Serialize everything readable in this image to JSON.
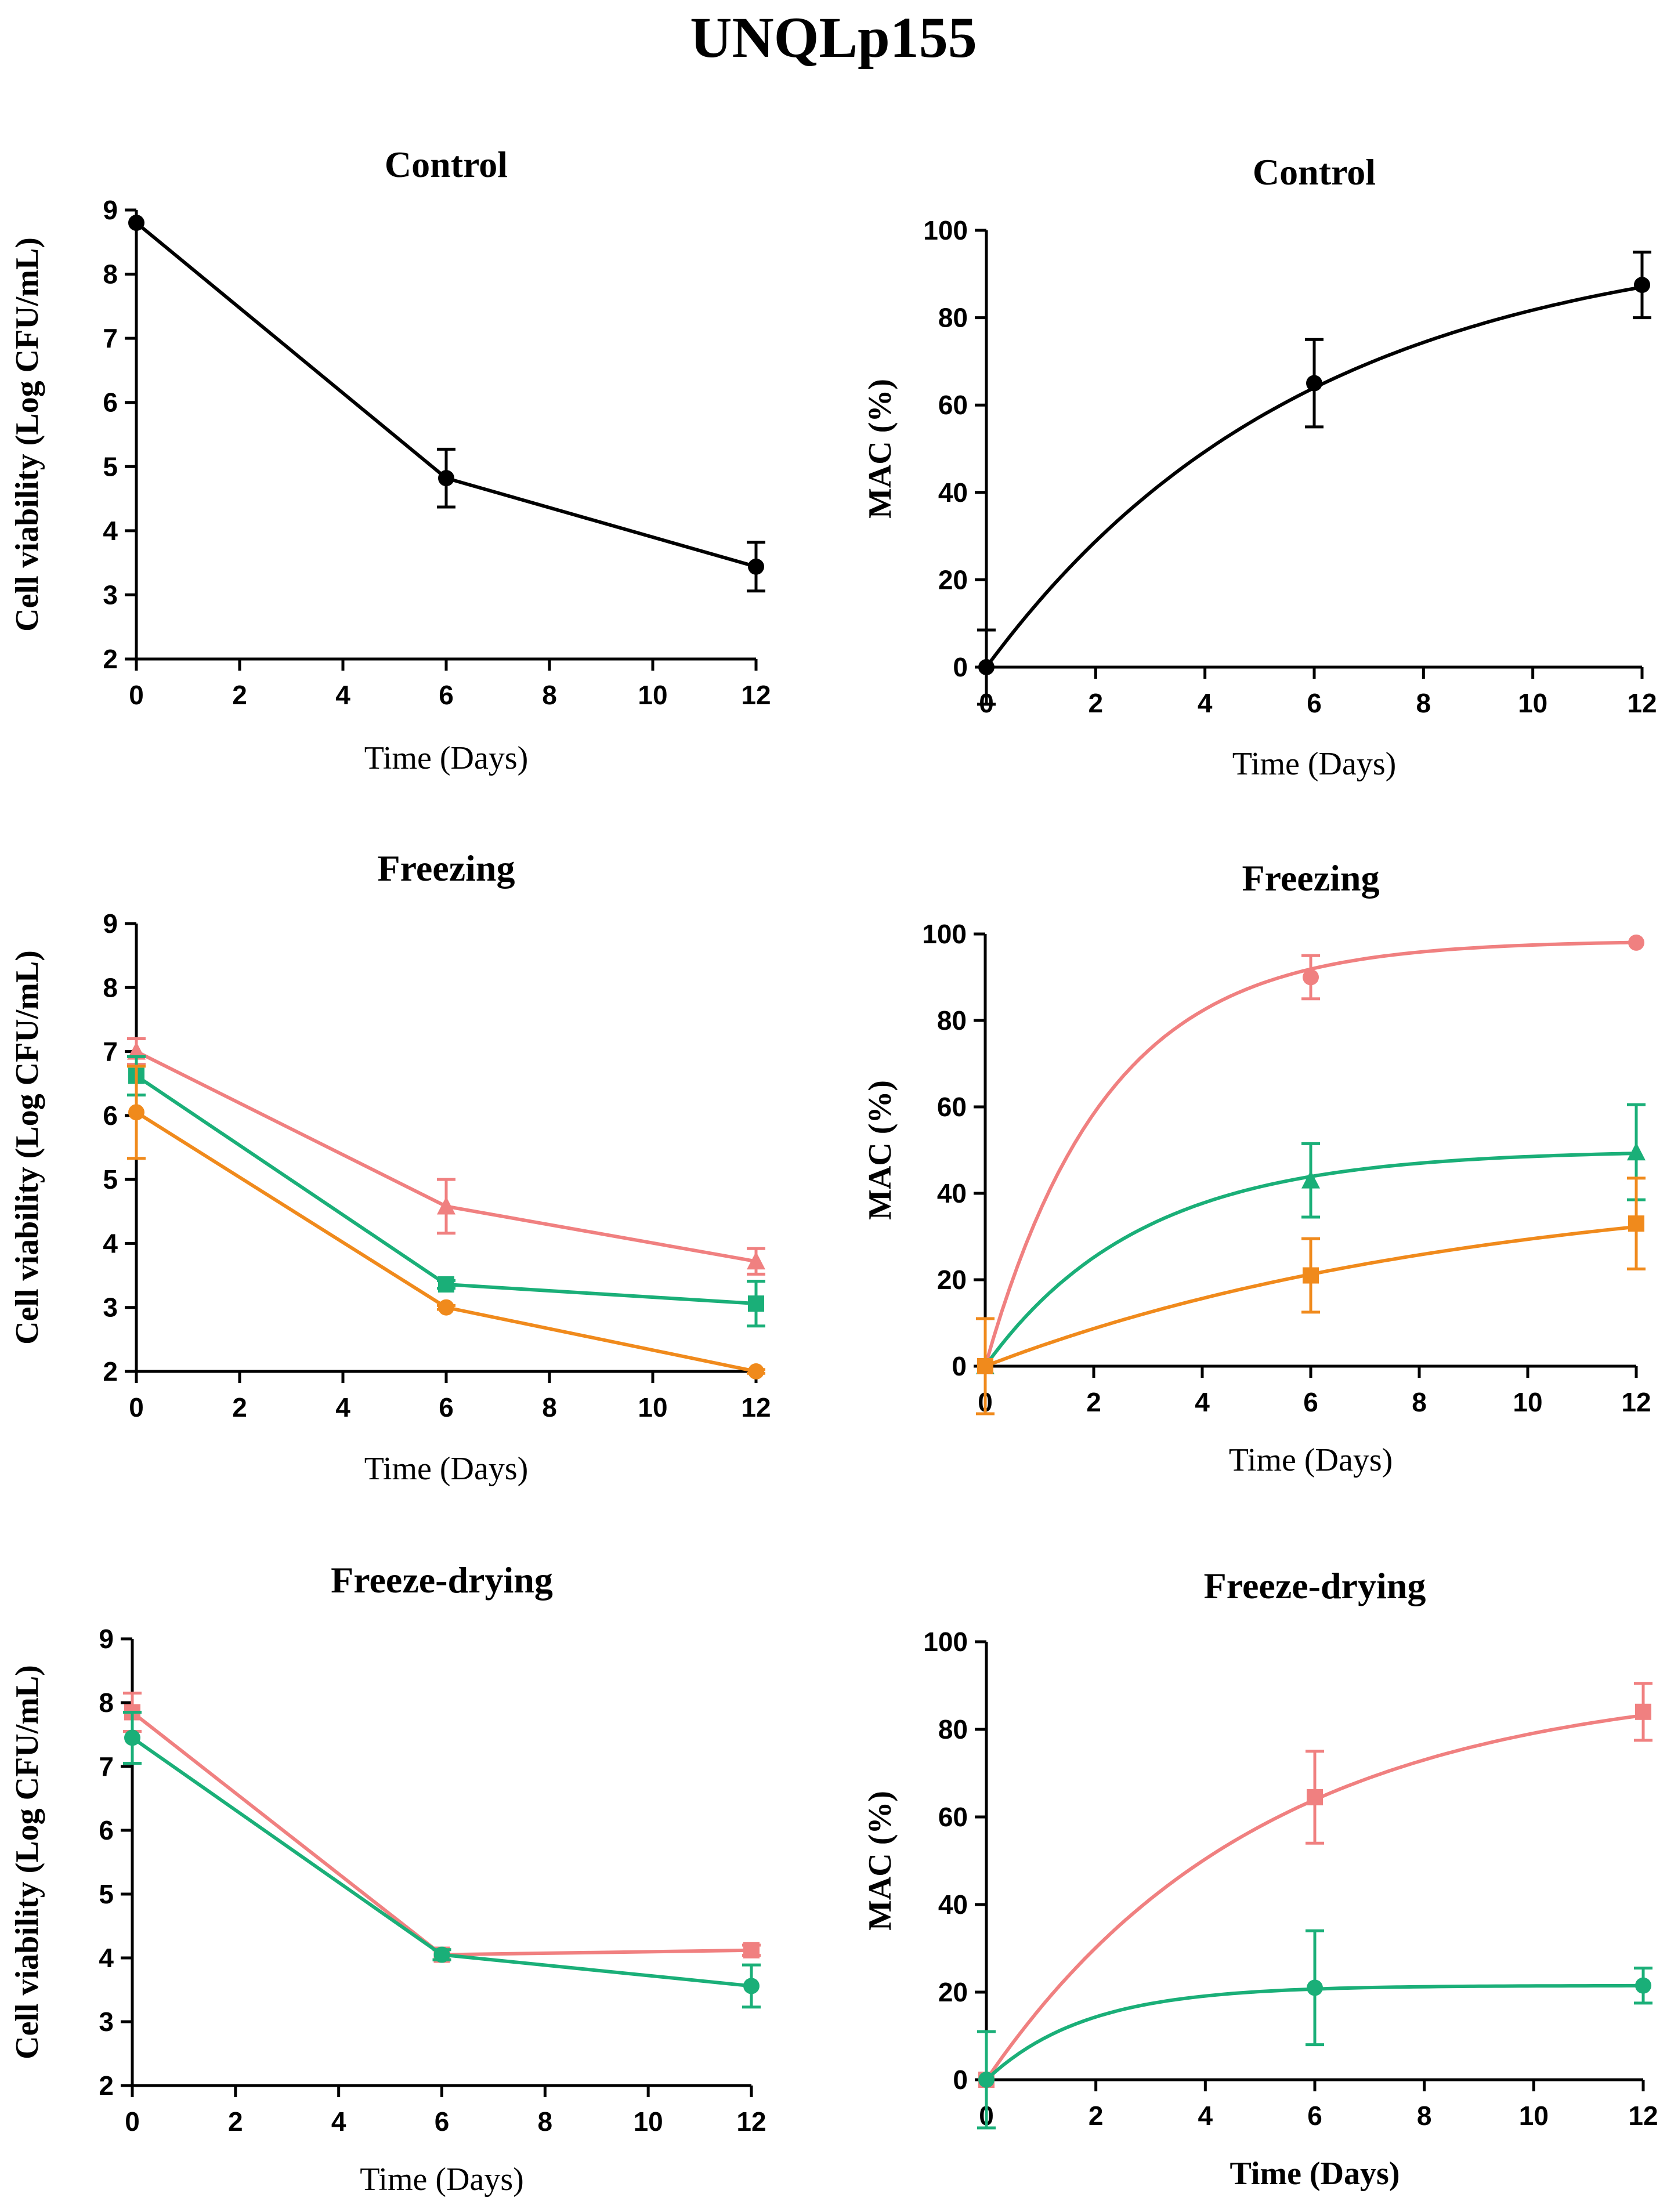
{
  "figure_title": "UNQLp155",
  "colors": {
    "black": "#000000",
    "pink": "#f08080",
    "green": "#1aaf78",
    "orange": "#f08a1c"
  },
  "chart_data": [
    {
      "id": "control-viability",
      "type": "line",
      "title": "Control",
      "xlabel": "Time (Days)",
      "ylabel": "Cell viability (Log CFU/mL)",
      "xlim": [
        0,
        12
      ],
      "ylim": [
        2,
        9
      ],
      "xticks": [
        "0",
        "2",
        "4",
        "6",
        "8",
        "10",
        "12"
      ],
      "yticks": [
        "2",
        "3",
        "4",
        "5",
        "6",
        "7",
        "8",
        "9"
      ],
      "series": [
        {
          "name": "control",
          "color": "black",
          "marker": "circle",
          "x": [
            0,
            6,
            12
          ],
          "y": [
            8.8,
            4.82,
            3.44
          ],
          "err": [
            0,
            0.45,
            0.38
          ]
        }
      ]
    },
    {
      "id": "control-mac",
      "type": "line",
      "title": "Control",
      "xlabel": "Time (Days)",
      "ylabel": "MAC (%)",
      "xlim": [
        0,
        12
      ],
      "ylim": [
        0,
        100
      ],
      "xticks": [
        "0",
        "2",
        "4",
        "6",
        "8",
        "10",
        "12"
      ],
      "yticks": [
        "0",
        "20",
        "40",
        "60",
        "80",
        "100"
      ],
      "series": [
        {
          "name": "control",
          "color": "black",
          "marker": "circle",
          "x": [
            0,
            6,
            12
          ],
          "y": [
            0,
            65,
            87.5
          ],
          "err": [
            8.5,
            10,
            7.5
          ],
          "fit": {
            "plateau": 100,
            "k": 0.17
          }
        }
      ]
    },
    {
      "id": "freezing-viability",
      "type": "line",
      "title": "Freezing",
      "xlabel": "Time (Days)",
      "ylabel": "Cell viability (Log CFU/mL)",
      "xlim": [
        0,
        12
      ],
      "ylim": [
        2,
        9
      ],
      "xticks": [
        "0",
        "2",
        "4",
        "6",
        "8",
        "10",
        "12"
      ],
      "yticks": [
        "2",
        "3",
        "4",
        "5",
        "6",
        "7",
        "8",
        "9"
      ],
      "series": [
        {
          "name": "pink",
          "color": "pink",
          "marker": "triangle",
          "x": [
            0,
            6,
            12
          ],
          "y": [
            7.0,
            4.58,
            3.72
          ],
          "err": [
            0.2,
            0.42,
            0.2
          ]
        },
        {
          "name": "green",
          "color": "green",
          "marker": "square",
          "x": [
            0,
            6,
            12
          ],
          "y": [
            6.62,
            3.36,
            3.06
          ],
          "err": [
            0.3,
            0.06,
            0.35
          ]
        },
        {
          "name": "orange",
          "color": "orange",
          "marker": "circle",
          "x": [
            0,
            6,
            12
          ],
          "y": [
            6.05,
            3.0,
            2.0
          ],
          "err": [
            0.72,
            0.03,
            0.03
          ]
        }
      ]
    },
    {
      "id": "freezing-mac",
      "type": "line",
      "title": "Freezing",
      "xlabel": "Time (Days)",
      "ylabel": "MAC (%)",
      "xlim": [
        0,
        12
      ],
      "ylim": [
        0,
        100
      ],
      "xticks": [
        "0",
        "2",
        "4",
        "6",
        "8",
        "10",
        "12"
      ],
      "yticks": [
        "0",
        "20",
        "40",
        "60",
        "80",
        "100"
      ],
      "series": [
        {
          "name": "pink",
          "color": "pink",
          "marker": "circle",
          "x": [
            0,
            6,
            12
          ],
          "y": [
            0,
            90,
            98
          ],
          "err": [
            0,
            5,
            0
          ],
          "fit": {
            "plateau": 98.5,
            "k": 0.45
          }
        },
        {
          "name": "green",
          "color": "green",
          "marker": "triangle",
          "x": [
            0,
            6,
            12
          ],
          "y": [
            0,
            43,
            49.5
          ],
          "err": [
            0,
            8.5,
            11
          ],
          "fit": {
            "plateau": 50,
            "k": 0.35
          }
        },
        {
          "name": "orange",
          "color": "orange",
          "marker": "square",
          "x": [
            0,
            6,
            12
          ],
          "y": [
            0,
            21,
            33
          ],
          "err": [
            11,
            8.5,
            10.5
          ],
          "fit": {
            "plateau": 44,
            "k": 0.11
          }
        }
      ]
    },
    {
      "id": "freeze-drying-viability",
      "type": "line",
      "title": "Freeze-drying",
      "xlabel": "Time (Days)",
      "ylabel": "Cell viability (Log CFU/mL)",
      "xlim": [
        0,
        12
      ],
      "ylim": [
        2,
        9
      ],
      "xticks": [
        "0",
        "2",
        "4",
        "6",
        "8",
        "10",
        "12"
      ],
      "yticks": [
        "2",
        "3",
        "4",
        "5",
        "6",
        "7",
        "8",
        "9"
      ],
      "series": [
        {
          "name": "pink",
          "color": "pink",
          "marker": "square",
          "x": [
            0,
            6,
            12
          ],
          "y": [
            7.85,
            4.05,
            4.12
          ],
          "err": [
            0.3,
            0.08,
            0.08
          ]
        },
        {
          "name": "green",
          "color": "green",
          "marker": "circle",
          "x": [
            0,
            6,
            12
          ],
          "y": [
            7.45,
            4.05,
            3.56
          ],
          "err": [
            0.4,
            0.08,
            0.33
          ]
        }
      ]
    },
    {
      "id": "freeze-drying-mac",
      "type": "line",
      "title": "Freeze-drying",
      "xlabel": "Time (Days)",
      "ylabel": "MAC (%)",
      "xlim": [
        0,
        12
      ],
      "ylim": [
        0,
        100
      ],
      "xticks": [
        "0",
        "2",
        "4",
        "6",
        "8",
        "10",
        "12"
      ],
      "yticks": [
        "0",
        "20",
        "40",
        "60",
        "80",
        "100"
      ],
      "series": [
        {
          "name": "pink",
          "color": "pink",
          "marker": "square",
          "x": [
            0,
            6,
            12
          ],
          "y": [
            0,
            64.5,
            84
          ],
          "err": [
            0,
            10.5,
            6.5
          ],
          "fit": {
            "plateau": 91.5,
            "k": 0.2
          }
        },
        {
          "name": "green",
          "color": "green",
          "marker": "circle",
          "x": [
            0,
            6,
            12
          ],
          "y": [
            0,
            21,
            21.5
          ],
          "err": [
            11,
            13,
            4
          ],
          "fit": {
            "plateau": 21.5,
            "k": 0.55
          }
        }
      ]
    }
  ]
}
